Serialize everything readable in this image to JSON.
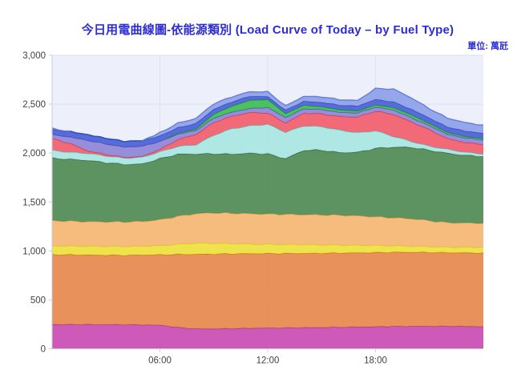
{
  "header": {
    "title": "今日用電曲線圖-依能源類別 (Load Curve of Today – by Fuel Type)",
    "unit_label": "單位: 萬瓩"
  },
  "chart_data": {
    "type": "area",
    "stacked": true,
    "title": "今日用電曲線圖-依能源類別 (Load Curve of Today – by Fuel Type)",
    "unit": "萬瓩",
    "xlabel": "",
    "ylabel": "",
    "xlim": [
      0,
      24
    ],
    "ylim": [
      0,
      3000
    ],
    "grid": true,
    "legend_position": "none",
    "x_hours": [
      0,
      1,
      2,
      3,
      4,
      5,
      6,
      7,
      8,
      9,
      10,
      11,
      12,
      13,
      14,
      15,
      16,
      17,
      18,
      19,
      20,
      21,
      22,
      23,
      24
    ],
    "xticks": [
      {
        "value": 6,
        "label": "06:00"
      },
      {
        "value": 12,
        "label": "12:00"
      },
      {
        "value": 18,
        "label": "18:00"
      }
    ],
    "yticks": [
      {
        "value": 0,
        "label": "0"
      },
      {
        "value": 500,
        "label": "500"
      },
      {
        "value": 1000,
        "label": "1,000"
      },
      {
        "value": 1500,
        "label": "1,500"
      },
      {
        "value": 2000,
        "label": "2,000"
      },
      {
        "value": 2500,
        "label": "2,500"
      },
      {
        "value": 3000,
        "label": "3,000"
      }
    ],
    "series": [
      {
        "name": "band-magenta",
        "fill": "#ca4fb4",
        "stroke": "#ad3698",
        "values": [
          250,
          250,
          250,
          249,
          248,
          246,
          243,
          220,
          205,
          205,
          208,
          211,
          214,
          215,
          217,
          219,
          221,
          224,
          227,
          230,
          231,
          232,
          232,
          230,
          228
        ]
      },
      {
        "name": "band-orange",
        "fill": "#e78a4e",
        "stroke": "#d3702f",
        "values": [
          715,
          712,
          710,
          709,
          710,
          714,
          719,
          746,
          763,
          765,
          764,
          763,
          761,
          760,
          759,
          759,
          759,
          758,
          758,
          758,
          757,
          754,
          752,
          752,
          752
        ]
      },
      {
        "name": "band-yellow",
        "fill": "#eee13f",
        "stroke": "#d9c820",
        "values": [
          90,
          90,
          90,
          90,
          90,
          90,
          94,
          104,
          114,
          110,
          104,
          98,
          95,
          93,
          90,
          86,
          82,
          78,
          73,
          67,
          62,
          60,
          57,
          58,
          60
        ]
      },
      {
        "name": "band-peach",
        "fill": "#f6b873",
        "stroke": "#e79a47",
        "values": [
          255,
          254,
          250,
          250,
          250,
          252,
          264,
          285,
          300,
          310,
          310,
          310,
          308,
          307,
          306,
          306,
          304,
          300,
          292,
          285,
          280,
          264,
          249,
          246,
          245
        ]
      },
      {
        "name": "band-dark-green",
        "fill": "#518c55",
        "stroke": "#36663c",
        "values": [
          640,
          632,
          626,
          607,
          588,
          588,
          625,
          635,
          610,
          605,
          604,
          618,
          615,
          570,
          658,
          662,
          640,
          650,
          700,
          722,
          730,
          720,
          710,
          692,
          683
        ]
      },
      {
        "name": "band-cyan",
        "fill": "#a9e6e2",
        "stroke": "#62bdb4",
        "values": [
          80,
          72,
          72,
          67,
          64,
          68,
          70,
          80,
          95,
          190,
          260,
          280,
          303,
          270,
          250,
          240,
          230,
          200,
          180,
          110,
          60,
          42,
          40,
          32,
          25
        ]
      },
      {
        "name": "band-red",
        "fill": "#f2606e",
        "stroke": "#d43a50",
        "values": [
          120,
          90,
          25,
          16,
          8,
          8,
          25,
          70,
          105,
          130,
          130,
          135,
          115,
          95,
          130,
          130,
          140,
          160,
          200,
          225,
          200,
          168,
          110,
          100,
          98
        ]
      },
      {
        "name": "band-lavender",
        "fill": "#9086d6",
        "stroke": "#5b50bd",
        "values": [
          40,
          65,
          107,
          107,
          105,
          105,
          80,
          55,
          40,
          45,
          40,
          42,
          57,
          55,
          45,
          45,
          42,
          42,
          42,
          45,
          42,
          42,
          45,
          45,
          44
        ]
      },
      {
        "name": "band-bright-green",
        "fill": "#3dbe54",
        "stroke": "#1f8f37",
        "values": [
          0,
          0,
          0,
          0,
          0,
          0,
          0,
          8,
          15,
          40,
          60,
          85,
          80,
          40,
          35,
          28,
          25,
          20,
          22,
          25,
          30,
          22,
          18,
          15,
          14
        ]
      },
      {
        "name": "band-royal-blue",
        "fill": "#4a63d6",
        "stroke": "#2e49bd",
        "values": [
          52,
          55,
          57,
          57,
          57,
          57,
          57,
          57,
          57,
          50,
          45,
          40,
          30,
          35,
          40,
          45,
          48,
          50,
          55,
          57,
          57,
          55,
          55,
          56,
          55
        ]
      },
      {
        "name": "band-periwinkle",
        "fill": "#8fa0e8",
        "stroke": "#667fd4",
        "values": [
          10,
          0,
          0,
          0,
          0,
          0,
          30,
          45,
          50,
          55,
          50,
          45,
          48,
          42,
          50,
          55,
          55,
          55,
          110,
          130,
          115,
          95,
          90,
          85,
          80
        ]
      }
    ]
  },
  "style_colors": {
    "title_blue": "#2d2dd0",
    "plot_background": "#edeffa",
    "gridline": "#dfe1ee",
    "axis_border": "#c9cbd8",
    "tick_text": "#3f3f46",
    "page_background": "#ffffff"
  }
}
